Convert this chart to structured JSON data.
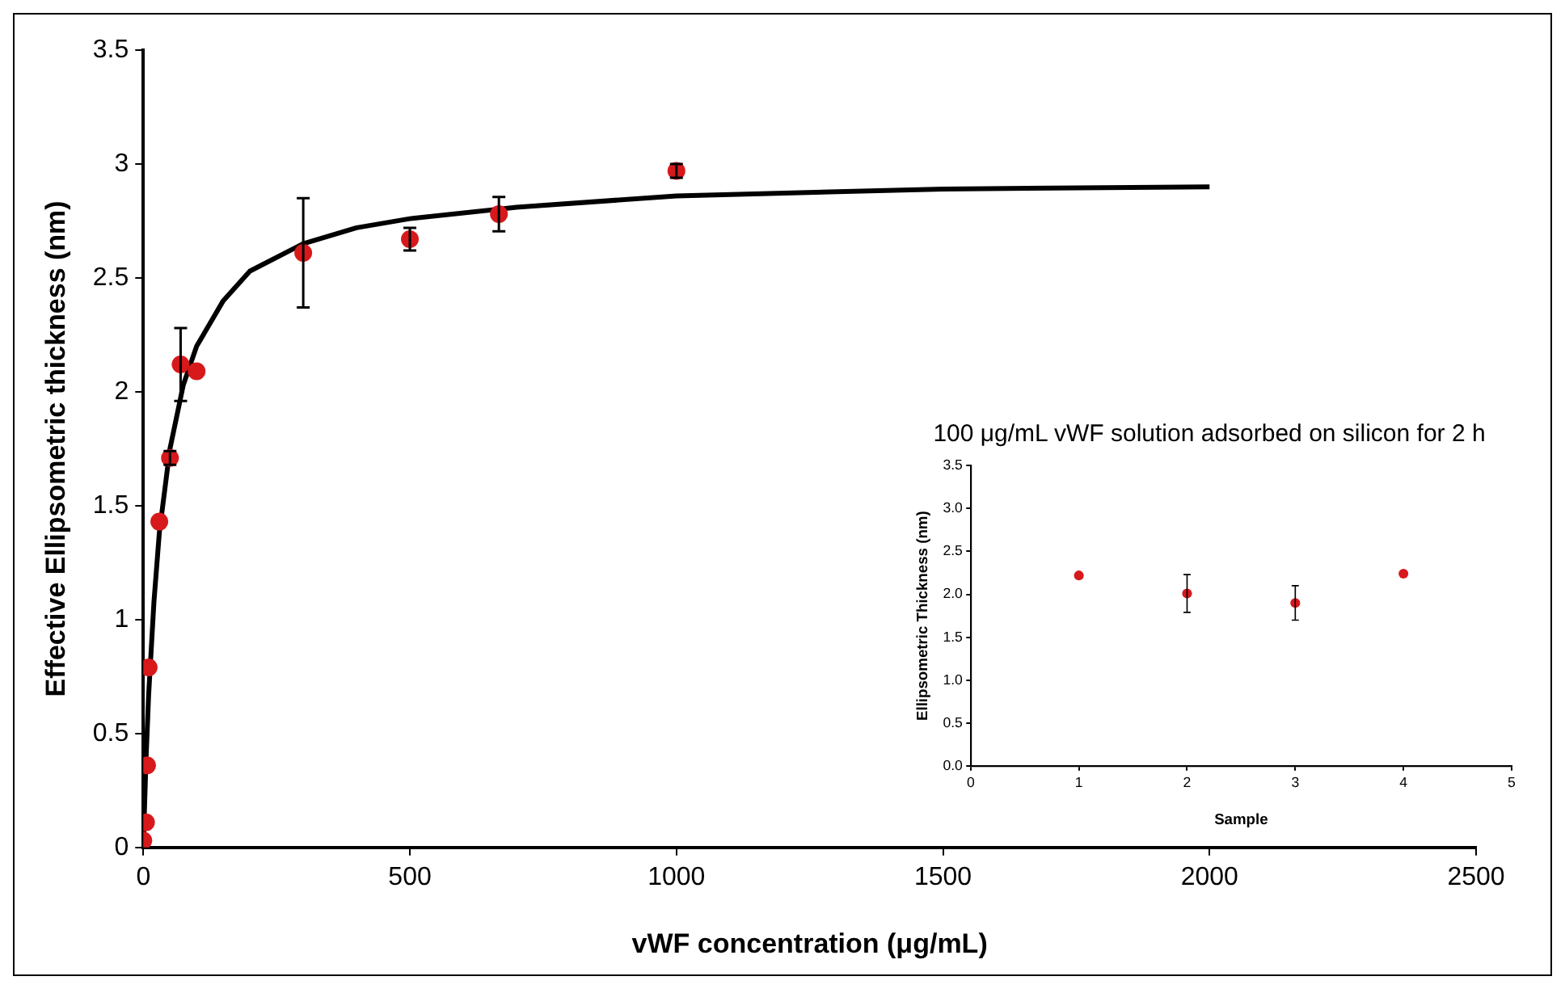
{
  "chart_data": [
    {
      "type": "scatter",
      "xlabel": "vWF concentration (μg/mL)",
      "ylabel": "Effective Ellipsometric thickness (nm)",
      "xlim": [
        0,
        2500
      ],
      "xticks": [
        0,
        500,
        1000,
        1500,
        2000,
        2500
      ],
      "ylim": [
        0,
        3.5
      ],
      "yticks": [
        0,
        0.5,
        1,
        1.5,
        2,
        2.5,
        3,
        3.5
      ],
      "grid": false,
      "legend": false,
      "series": [
        {
          "type": "scatter",
          "color": "#d7191c",
          "marker": "circle",
          "x": [
            0,
            5,
            7,
            10,
            30,
            50,
            70,
            100,
            300,
            500,
            667,
            1000
          ],
          "values": [
            0.03,
            0.11,
            0.36,
            0.79,
            1.43,
            1.71,
            2.12,
            2.09,
            2.61,
            2.67,
            2.78,
            2.97
          ],
          "errors": [
            null,
            null,
            null,
            null,
            null,
            0.03,
            0.16,
            null,
            0.24,
            0.05,
            0.075,
            0.03
          ]
        },
        {
          "type": "line",
          "color": "#000000",
          "marker": "none",
          "line_style": "solid",
          "x": [
            0,
            5,
            10,
            20,
            30,
            50,
            75,
            100,
            150,
            200,
            300,
            400,
            500,
            700,
            1000,
            1500,
            2000
          ],
          "values": [
            0,
            0.38,
            0.67,
            1.08,
            1.38,
            1.75,
            2.03,
            2.2,
            2.4,
            2.53,
            2.65,
            2.72,
            2.76,
            2.81,
            2.86,
            2.89,
            2.9
          ]
        }
      ]
    },
    {
      "type": "scatter",
      "title": "100 μg/mL vWF solution adsorbed on silicon for 2 h",
      "xlabel": "Sample",
      "ylabel": "Ellipsometric Thickness (nm)",
      "xlim": [
        0,
        5
      ],
      "xticks": [
        0,
        1,
        2,
        3,
        4,
        5
      ],
      "ylim": [
        0,
        3.5
      ],
      "yticks": [
        {
          "value": 0,
          "label": "0.0"
        },
        {
          "value": 0.5,
          "label": "0.5"
        },
        {
          "value": 1,
          "label": "1.0"
        },
        {
          "value": 1.5,
          "label": "1.5"
        },
        {
          "value": 2,
          "label": "2.0"
        },
        {
          "value": 2.5,
          "label": "2.5"
        },
        {
          "value": 3,
          "label": "3.0"
        },
        {
          "value": 3.5,
          "label": "3.5"
        }
      ],
      "grid": false,
      "legend": false,
      "series": [
        {
          "type": "scatter",
          "color": "#d7191c",
          "marker": "circle",
          "x": [
            1,
            2,
            3,
            4
          ],
          "values": [
            2.22,
            2.01,
            1.9,
            2.24
          ],
          "errors": [
            null,
            0.22,
            0.2,
            null
          ]
        }
      ]
    }
  ]
}
